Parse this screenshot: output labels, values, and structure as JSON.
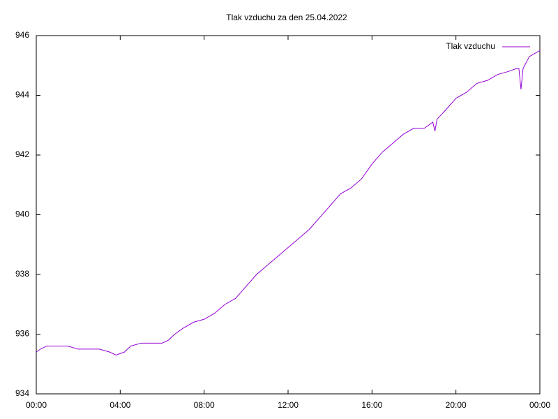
{
  "chart_data": {
    "type": "line",
    "title": "Tlak vzduchu za den 25.04.2022",
    "x": [
      0,
      0.2,
      0.5,
      1,
      1.5,
      2,
      2.5,
      3,
      3.5,
      3.8,
      4.2,
      4.5,
      5,
      5.5,
      6,
      6.3,
      6.6,
      7,
      7.5,
      8,
      8.5,
      9,
      9.5,
      10,
      10.5,
      11,
      11.5,
      12,
      12.5,
      13,
      13.5,
      14,
      14.5,
      15,
      15.5,
      16,
      16.5,
      17,
      17.5,
      18,
      18.5,
      18.9,
      19,
      19.1,
      19.5,
      20,
      20.5,
      21,
      21.5,
      22,
      22.5,
      22.9,
      23,
      23.1,
      23.2,
      23.5,
      24
    ],
    "series": [
      {
        "name": "Tlak vzduchu",
        "color": "#9400d3",
        "values": [
          935.4,
          935.5,
          935.6,
          935.6,
          935.6,
          935.5,
          935.5,
          935.5,
          935.4,
          935.3,
          935.4,
          935.6,
          935.7,
          935.7,
          935.7,
          935.8,
          936.0,
          936.2,
          936.4,
          936.5,
          936.7,
          937.0,
          937.2,
          937.6,
          938.0,
          938.3,
          938.6,
          938.9,
          939.2,
          939.5,
          939.9,
          940.3,
          940.7,
          940.9,
          941.2,
          941.7,
          942.1,
          942.4,
          942.7,
          942.9,
          942.9,
          943.1,
          942.8,
          943.2,
          943.5,
          943.9,
          944.1,
          944.4,
          944.5,
          944.7,
          944.8,
          944.9,
          944.9,
          944.2,
          944.9,
          945.3,
          945.5
        ]
      }
    ],
    "xlim": [
      0,
      24
    ],
    "xticks": [
      {
        "value": 0,
        "label": "00:00"
      },
      {
        "value": 4,
        "label": "04:00"
      },
      {
        "value": 8,
        "label": "08:00"
      },
      {
        "value": 12,
        "label": "12:00"
      },
      {
        "value": 16,
        "label": "16:00"
      },
      {
        "value": 20,
        "label": "20:00"
      },
      {
        "value": 24,
        "label": "00:00"
      }
    ],
    "ylim": [
      934,
      946
    ],
    "yticks": [
      934,
      936,
      938,
      940,
      942,
      944,
      946
    ],
    "grid": false,
    "legend": "top-right"
  }
}
